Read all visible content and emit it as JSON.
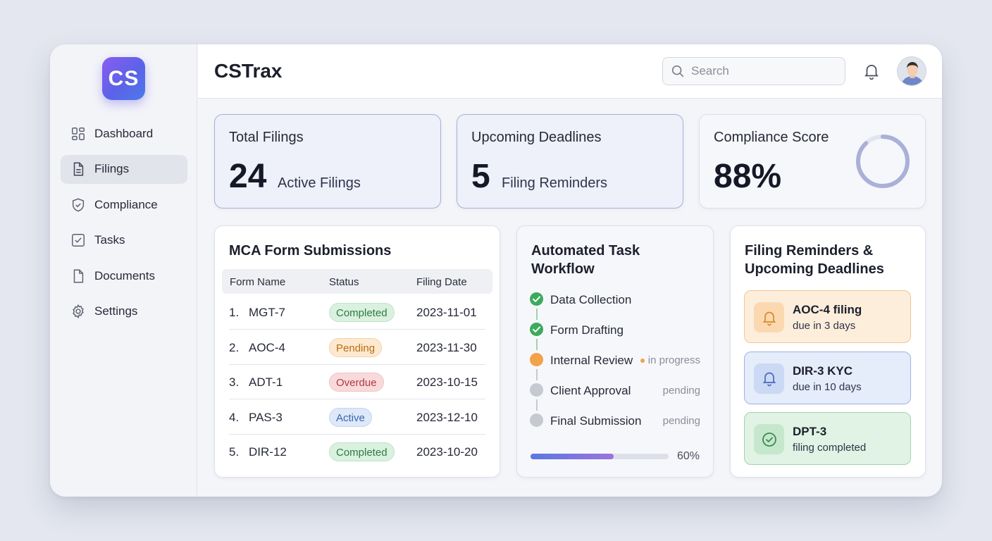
{
  "app": {
    "logo": "CS",
    "title": "CSTrax"
  },
  "sidebar": {
    "items": [
      {
        "label": "Dashboard",
        "icon": "grid-icon"
      },
      {
        "label": "Filings",
        "icon": "file-icon",
        "active": true
      },
      {
        "label": "Compliance",
        "icon": "shield-icon"
      },
      {
        "label": "Tasks",
        "icon": "checkbox-icon"
      },
      {
        "label": "Documents",
        "icon": "document-icon"
      },
      {
        "label": "Settings",
        "icon": "gear-icon"
      }
    ]
  },
  "header": {
    "search_placeholder": "Search"
  },
  "stats": {
    "total": {
      "label": "Total Filings",
      "value": "24",
      "sub": "Active Filings"
    },
    "deadlines": {
      "label": "Upcoming Deadlines",
      "value": "5",
      "sub": "Filing Reminders"
    },
    "compliance": {
      "label": "Compliance Score",
      "value": "88%",
      "score": 0.88
    }
  },
  "mca": {
    "title": "MCA Form Submissions",
    "columns": [
      "Form Name",
      "Status",
      "Filing Date"
    ],
    "rows": [
      {
        "idx": "1.",
        "name": "MGT-7",
        "status": "Completed",
        "date": "2023-11-01"
      },
      {
        "idx": "2.",
        "name": "AOC-4",
        "status": "Pending",
        "date": "2023-11-30"
      },
      {
        "idx": "3.",
        "name": "ADT-1",
        "status": "Overdue",
        "date": "2023-10-15"
      },
      {
        "idx": "4.",
        "name": "PAS-3",
        "status": "Active",
        "date": "2023-12-10"
      },
      {
        "idx": "5.",
        "name": "DIR-12",
        "status": "Completed",
        "date": "2023-10-20"
      }
    ],
    "status_colors": {
      "Completed": {
        "bg": "#d9f1de",
        "fg": "#2f7a43",
        "border": "#bfe4c7"
      },
      "Pending": {
        "bg": "#fde9cf",
        "fg": "#b86d14",
        "border": "#f6d3a6"
      },
      "Overdue": {
        "bg": "#f9dadb",
        "fg": "#b33a40",
        "border": "#f1c2c4"
      },
      "Active": {
        "bg": "#dde8f8",
        "fg": "#3a64b0",
        "border": "#c4d6f1"
      }
    }
  },
  "workflow": {
    "title_line1": "Automated Task",
    "title_line2": "Workflow",
    "steps": [
      {
        "label": "Data Collection",
        "state": "done",
        "tag": ""
      },
      {
        "label": "Form Drafting",
        "state": "done",
        "tag": ""
      },
      {
        "label": "Internal Review",
        "state": "progress",
        "tag": "in progress"
      },
      {
        "label": "Client Approval",
        "state": "pending",
        "tag": "pending"
      },
      {
        "label": "Final Submission",
        "state": "pending",
        "tag": "pending"
      }
    ],
    "progress": 0.6,
    "progress_label": "60%"
  },
  "reminders": {
    "title_line1": "Filing Reminders &",
    "title_line2": "Upcoming Deadlines",
    "items": [
      {
        "title": "AOC-4 filing",
        "sub": "due in 3 days",
        "icon": "bell-icon",
        "bg": "#fdeedc",
        "border": "#f3c48c",
        "iconbg": "#fbd9b0",
        "iconfg": "#d68a2e"
      },
      {
        "title": "DIR-3 KYC",
        "sub": "due in 10 days",
        "icon": "bell-icon",
        "bg": "#e5ecfa",
        "border": "#9fb4e0",
        "iconbg": "#ccd9f4",
        "iconfg": "#4a69b8"
      },
      {
        "title": "DPT-3",
        "sub": "filing completed",
        "icon": "check-circle-icon",
        "bg": "#e0f3e4",
        "border": "#9fd4ab",
        "iconbg": "#c5e8cd",
        "iconfg": "#3d8a53"
      }
    ]
  }
}
